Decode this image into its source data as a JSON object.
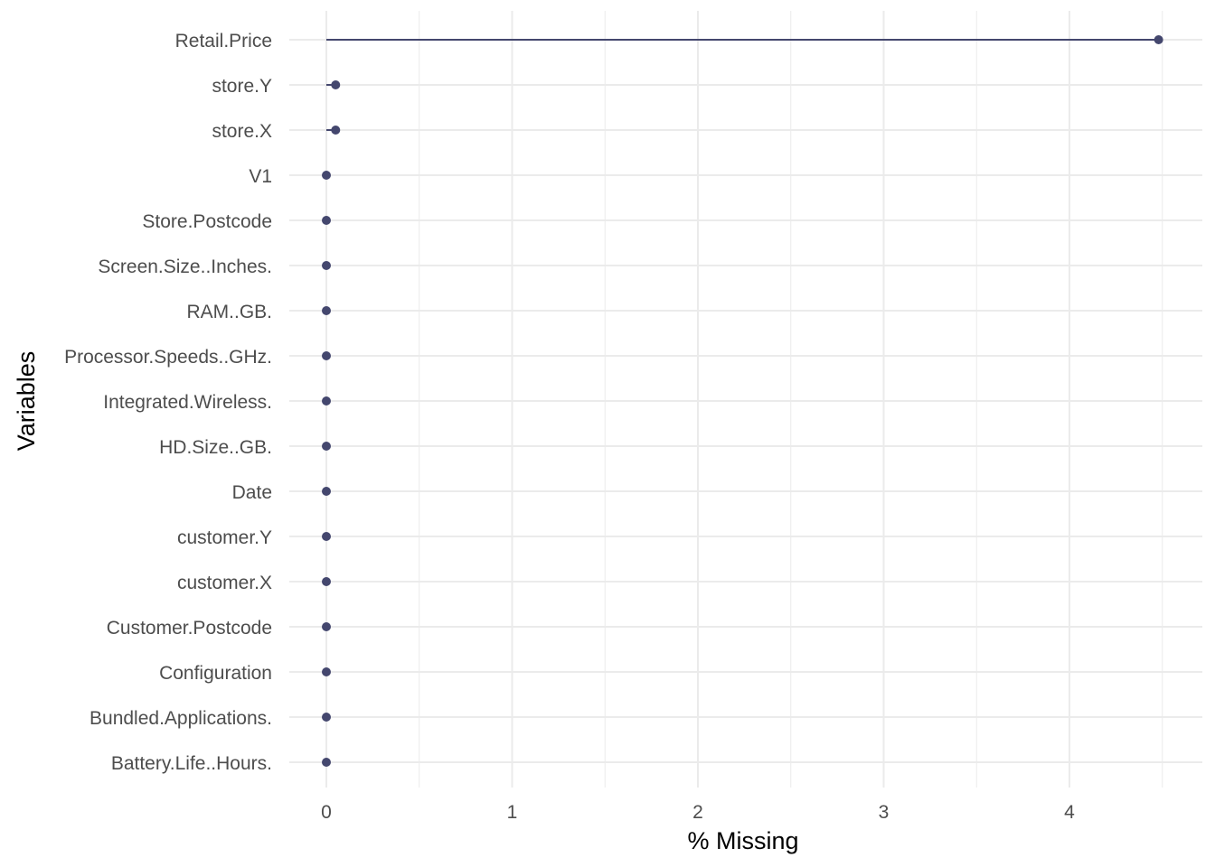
{
  "chart_data": {
    "type": "lollipop",
    "xlabel": "% Missing",
    "ylabel": "Variables",
    "xlim": [
      -0.1,
      4.6
    ],
    "xticks": [
      0,
      1,
      2,
      3,
      4
    ],
    "x_minor_ticks": [
      0.5,
      1.5,
      2.5,
      3.5,
      4.5
    ],
    "grid": true,
    "categories": [
      "Retail.Price",
      "store.Y",
      "store.X",
      "V1",
      "Store.Postcode",
      "Screen.Size..Inches.",
      "RAM..GB.",
      "Processor.Speeds..GHz.",
      "Integrated.Wireless.",
      "HD.Size..GB.",
      "Date",
      "customer.Y",
      "customer.X",
      "Customer.Postcode",
      "Configuration",
      "Bundled.Applications.",
      "Battery.Life..Hours."
    ],
    "values": [
      4.48,
      0.05,
      0.05,
      0,
      0,
      0,
      0,
      0,
      0,
      0,
      0,
      0,
      0,
      0,
      0,
      0,
      0
    ],
    "colors": {
      "point": "#44476e",
      "segment": "#44476e"
    }
  }
}
